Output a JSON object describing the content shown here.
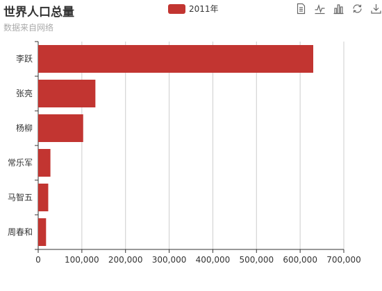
{
  "title": "世界人口总量",
  "subtitle": "数据来自网络",
  "toolbox": [
    {
      "name": "data-view-icon"
    },
    {
      "name": "line-chart-icon"
    },
    {
      "name": "bar-chart-icon"
    },
    {
      "name": "restore-icon"
    },
    {
      "name": "save-image-icon"
    }
  ],
  "colors": {
    "series": "#c23531",
    "axis": "#333333",
    "grid": "#cccccc",
    "title": "#333333",
    "subtitle": "#aaaaaa"
  },
  "chart_data": {
    "type": "bar",
    "orientation": "horizontal",
    "title": "世界人口总量",
    "subtitle": "数据来自网络",
    "categories": [
      "李跃",
      "张亮",
      "杨柳",
      "常乐军",
      "马智五",
      "周春和"
    ],
    "series": [
      {
        "name": "2011年",
        "values": [
          630000,
          131000,
          103000,
          28000,
          23000,
          18000
        ]
      }
    ],
    "xlim": [
      0,
      700000
    ],
    "x_ticks": [
      0,
      100000,
      200000,
      300000,
      400000,
      500000,
      600000,
      700000
    ],
    "x_tick_labels": [
      "0",
      "100,000",
      "200,000",
      "300,000",
      "400,000",
      "500,000",
      "600,000",
      "700,000"
    ],
    "grid": "vertical",
    "legend": "top-center"
  }
}
